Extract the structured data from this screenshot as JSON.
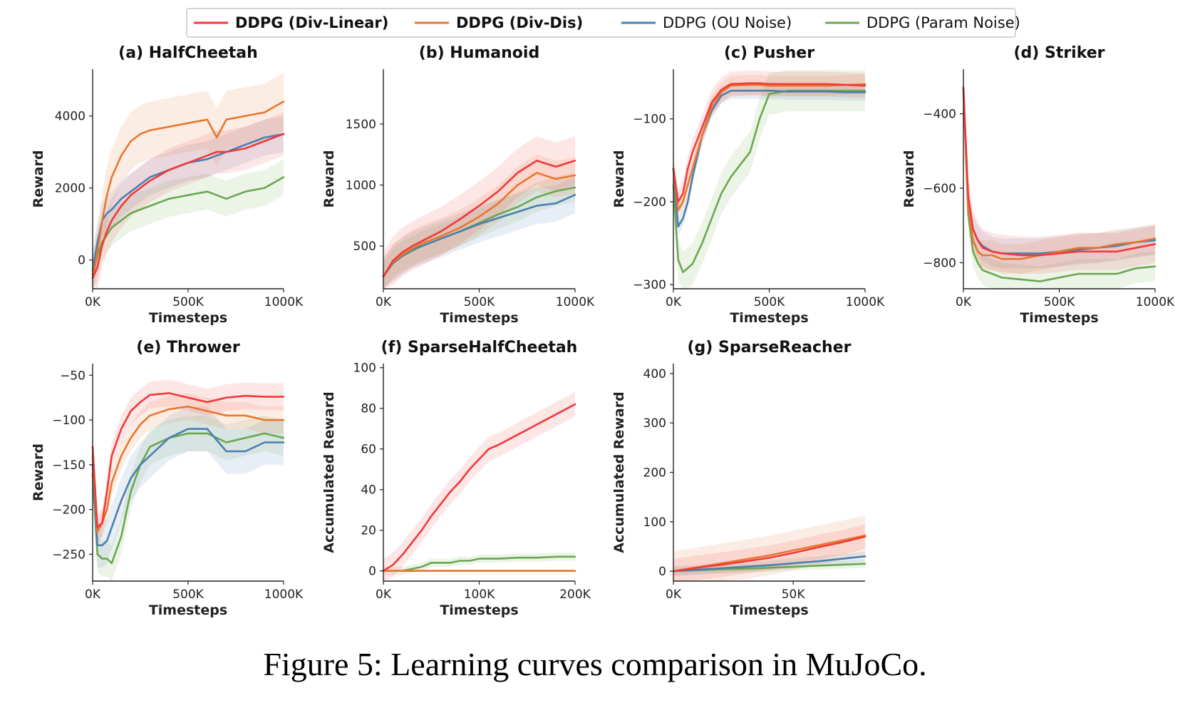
{
  "caption": "Figure 5: Learning curves comparison in MuJoCo.",
  "legend": {
    "placement": "top-center",
    "entries": [
      {
        "label": "DDPG (Div-Linear)",
        "color": "#f03a3a",
        "bold": true
      },
      {
        "label": "DDPG (Div-Dis)",
        "color": "#e8772e",
        "bold": true
      },
      {
        "label": "DDPG (OU Noise)",
        "color": "#4a7fb0",
        "bold": false
      },
      {
        "label": "DDPG (Param Noise)",
        "color": "#6aa84f",
        "bold": false
      }
    ]
  },
  "chart_data": [
    {
      "type": "line",
      "title": "(a) HalfCheetah",
      "xlabel": "Timesteps",
      "ylabel": "Reward",
      "xlim": [
        0,
        1000
      ],
      "ylim": [
        -800,
        5300
      ],
      "xticks": [
        0,
        500,
        1000
      ],
      "xtick_labels": [
        "0K",
        "500K",
        "1000K"
      ],
      "yticks": [
        0,
        2000,
        4000
      ],
      "ytick_labels": [
        "0",
        "2000",
        "4000"
      ],
      "x": [
        0,
        25,
        50,
        75,
        100,
        150,
        200,
        250,
        300,
        400,
        500,
        600,
        650,
        700,
        800,
        900,
        1000
      ],
      "series": [
        {
          "name": "DDPG (Div-Linear)",
          "values": [
            -500,
            -200,
            400,
            800,
            1100,
            1500,
            1800,
            2000,
            2200,
            2500,
            2700,
            2900,
            3000,
            3000,
            3100,
            3300,
            3500
          ],
          "band": 600
        },
        {
          "name": "DDPG (Div-Dis)",
          "values": [
            -500,
            200,
            1100,
            1800,
            2300,
            2900,
            3300,
            3500,
            3600,
            3700,
            3800,
            3900,
            3400,
            3900,
            4000,
            4100,
            4400
          ],
          "band": 800
        },
        {
          "name": "DDPG (OU Noise)",
          "values": [
            -300,
            500,
            1100,
            1300,
            1400,
            1700,
            1900,
            2100,
            2300,
            2500,
            2700,
            2800,
            2900,
            3000,
            3200,
            3400,
            3500
          ],
          "band": 500
        },
        {
          "name": "DDPG (Param Noise)",
          "values": [
            -400,
            100,
            500,
            700,
            900,
            1100,
            1300,
            1400,
            1500,
            1700,
            1800,
            1900,
            1800,
            1700,
            1900,
            2000,
            2300
          ],
          "band": 500
        }
      ]
    },
    {
      "type": "line",
      "title": "(b) Humanoid",
      "xlabel": "Timesteps",
      "ylabel": "Reward",
      "xlim": [
        0,
        1000
      ],
      "ylim": [
        150,
        1950
      ],
      "xticks": [
        0,
        500,
        1000
      ],
      "xtick_labels": [
        "0K",
        "500K",
        "1000K"
      ],
      "yticks": [
        500,
        1000,
        1500
      ],
      "ytick_labels": [
        "500",
        "1000",
        "1500"
      ],
      "x": [
        0,
        50,
        100,
        150,
        200,
        300,
        400,
        500,
        600,
        700,
        800,
        900,
        1000
      ],
      "series": [
        {
          "name": "DDPG (Div-Linear)",
          "values": [
            250,
            380,
            450,
            500,
            540,
            620,
            720,
            830,
            950,
            1100,
            1200,
            1150,
            1200
          ],
          "band": 200
        },
        {
          "name": "DDPG (Div-Dis)",
          "values": [
            250,
            370,
            430,
            480,
            520,
            580,
            650,
            740,
            850,
            1000,
            1100,
            1050,
            1080
          ],
          "band": 150
        },
        {
          "name": "DDPG (OU Noise)",
          "values": [
            250,
            360,
            420,
            470,
            500,
            560,
            620,
            680,
            730,
            780,
            830,
            850,
            920
          ],
          "band": 150
        },
        {
          "name": "DDPG (Param Noise)",
          "values": [
            250,
            360,
            420,
            460,
            500,
            560,
            620,
            690,
            760,
            820,
            900,
            950,
            980
          ],
          "band": 120
        }
      ]
    },
    {
      "type": "line",
      "title": "(c) Pusher",
      "xlabel": "Timesteps",
      "ylabel": "Reward",
      "xlim": [
        0,
        1000
      ],
      "ylim": [
        -305,
        -40
      ],
      "xticks": [
        0,
        500,
        1000
      ],
      "xtick_labels": [
        "0K",
        "500K",
        "1000K"
      ],
      "yticks": [
        -300,
        -200,
        -100
      ],
      "ytick_labels": [
        "−300",
        "−200",
        "−100"
      ],
      "x": [
        0,
        25,
        50,
        75,
        100,
        150,
        200,
        250,
        300,
        400,
        450,
        500,
        600,
        700,
        800,
        900,
        1000
      ],
      "series": [
        {
          "name": "DDPG (Div-Linear)",
          "values": [
            -160,
            -200,
            -190,
            -160,
            -140,
            -110,
            -80,
            -65,
            -58,
            -57,
            -57,
            -58,
            -58,
            -58,
            -58,
            -59,
            -60
          ],
          "band": 15
        },
        {
          "name": "DDPG (Div-Dis)",
          "values": [
            -160,
            -210,
            -200,
            -180,
            -160,
            -120,
            -85,
            -68,
            -60,
            -59,
            -59,
            -60,
            -60,
            -60,
            -60,
            -59,
            -58
          ],
          "band": 12
        },
        {
          "name": "DDPG (OU Noise)",
          "values": [
            -160,
            -230,
            -220,
            -200,
            -170,
            -120,
            -90,
            -72,
            -66,
            -66,
            -66,
            -66,
            -67,
            -67,
            -67,
            -68,
            -68
          ],
          "band": 10
        },
        {
          "name": "DDPG (Param Noise)",
          "values": [
            -180,
            -270,
            -285,
            -280,
            -275,
            -250,
            -220,
            -190,
            -170,
            -140,
            -100,
            -70,
            -66,
            -66,
            -66,
            -66,
            -66
          ],
          "band": 25
        }
      ]
    },
    {
      "type": "line",
      "title": "(d) Striker",
      "xlabel": "Timesteps",
      "ylabel": "Reward",
      "xlim": [
        0,
        1000
      ],
      "ylim": [
        -870,
        -280
      ],
      "xticks": [
        0,
        500,
        1000
      ],
      "xtick_labels": [
        "0K",
        "500K",
        "1000K"
      ],
      "yticks": [
        -800,
        -600,
        -400
      ],
      "ytick_labels": [
        "−800",
        "−600",
        "−400"
      ],
      "x": [
        0,
        10,
        25,
        50,
        75,
        100,
        150,
        200,
        300,
        400,
        500,
        600,
        700,
        800,
        900,
        1000
      ],
      "series": [
        {
          "name": "DDPG (Div-Linear)",
          "values": [
            -330,
            -450,
            -620,
            -710,
            -740,
            -760,
            -770,
            -775,
            -780,
            -780,
            -775,
            -770,
            -770,
            -770,
            -760,
            -750
          ],
          "band": 50
        },
        {
          "name": "DDPG (Div-Dis)",
          "values": [
            -330,
            -460,
            -650,
            -740,
            -770,
            -780,
            -780,
            -790,
            -790,
            -780,
            -770,
            -760,
            -760,
            -750,
            -745,
            -735
          ],
          "band": 40
        },
        {
          "name": "DDPG (OU Noise)",
          "values": [
            -330,
            -450,
            -630,
            -710,
            -740,
            -755,
            -770,
            -775,
            -775,
            -775,
            -770,
            -765,
            -760,
            -755,
            -745,
            -740
          ],
          "band": 40
        },
        {
          "name": "DDPG (Param Noise)",
          "values": [
            -330,
            -470,
            -670,
            -770,
            -800,
            -820,
            -830,
            -840,
            -845,
            -850,
            -840,
            -830,
            -830,
            -830,
            -815,
            -810
          ],
          "band": 40
        }
      ]
    },
    {
      "type": "line",
      "title": "(e) Thrower",
      "xlabel": "Timesteps",
      "ylabel": "Reward",
      "xlim": [
        0,
        1000
      ],
      "ylim": [
        -280,
        -37
      ],
      "xticks": [
        0,
        500,
        1000
      ],
      "xtick_labels": [
        "0K",
        "500K",
        "1000K"
      ],
      "yticks": [
        -250,
        -200,
        -150,
        -100,
        -50
      ],
      "ytick_labels": [
        "−250",
        "−200",
        "−150",
        "−100",
        "−50"
      ],
      "x": [
        0,
        25,
        50,
        75,
        100,
        150,
        200,
        250,
        300,
        400,
        500,
        600,
        700,
        800,
        900,
        1000
      ],
      "series": [
        {
          "name": "DDPG (Div-Linear)",
          "values": [
            -130,
            -220,
            -215,
            -180,
            -140,
            -110,
            -90,
            -80,
            -72,
            -70,
            -75,
            -80,
            -75,
            -73,
            -74,
            -74
          ],
          "band": 15
        },
        {
          "name": "DDPG (Div-Dis)",
          "values": [
            -140,
            -225,
            -215,
            -200,
            -170,
            -140,
            -120,
            -105,
            -95,
            -88,
            -85,
            -90,
            -95,
            -95,
            -100,
            -100
          ],
          "band": 15
        },
        {
          "name": "DDPG (OU Noise)",
          "values": [
            -150,
            -240,
            -240,
            -235,
            -220,
            -190,
            -165,
            -150,
            -140,
            -120,
            -110,
            -110,
            -135,
            -135,
            -125,
            -125
          ],
          "band": 25
        },
        {
          "name": "DDPG (Param Noise)",
          "values": [
            -160,
            -250,
            -255,
            -255,
            -260,
            -230,
            -180,
            -150,
            -130,
            -120,
            -115,
            -115,
            -125,
            -120,
            -115,
            -120
          ],
          "band": 20
        }
      ]
    },
    {
      "type": "line",
      "title": "(f) SparseHalfCheetah",
      "xlabel": "Timesteps",
      "ylabel": "Accumulated Reward",
      "xlim": [
        0,
        200
      ],
      "ylim": [
        -5,
        102
      ],
      "xticks": [
        0,
        100,
        200
      ],
      "xtick_labels": [
        "0K",
        "100K",
        "200K"
      ],
      "yticks": [
        0,
        20,
        40,
        60,
        80,
        100
      ],
      "ytick_labels": [
        "0",
        "20",
        "40",
        "60",
        "80",
        "100"
      ],
      "x": [
        0,
        10,
        20,
        30,
        40,
        50,
        60,
        70,
        80,
        90,
        100,
        110,
        120,
        140,
        160,
        180,
        200
      ],
      "series": [
        {
          "name": "DDPG (Div-Linear)",
          "values": [
            0,
            3,
            8,
            14,
            20,
            27,
            33,
            39,
            44,
            50,
            55,
            60,
            62,
            67,
            72,
            77,
            82
          ],
          "band": 6
        },
        {
          "name": "DDPG (Div-Dis)",
          "values": [
            0,
            0,
            0,
            0,
            0,
            0,
            0,
            0,
            0,
            0,
            0,
            0,
            0,
            0,
            0,
            0,
            0
          ],
          "band": 0
        },
        {
          "name": "DDPG (OU Noise)",
          "values": [
            0,
            0,
            0,
            0,
            0,
            0,
            0,
            0,
            0,
            0,
            0,
            0,
            0,
            0,
            0,
            0,
            0
          ],
          "band": 0
        },
        {
          "name": "DDPG (Param Noise)",
          "values": [
            0,
            0,
            0,
            1,
            2,
            4,
            4,
            4,
            5,
            5,
            6,
            6,
            6,
            6.5,
            6.5,
            7,
            7
          ],
          "band": 2
        }
      ]
    },
    {
      "type": "line",
      "title": "(g) SparseReacher",
      "xlabel": "Timesteps",
      "ylabel": "Accumulated Reward",
      "xlim": [
        0,
        80
      ],
      "ylim": [
        -20,
        420
      ],
      "xticks": [
        0,
        50
      ],
      "xtick_labels": [
        "0K",
        "50K"
      ],
      "yticks": [
        0,
        100,
        200,
        300,
        400
      ],
      "ytick_labels": [
        "0",
        "100",
        "200",
        "300",
        "400"
      ],
      "x": [
        0,
        10,
        20,
        30,
        40,
        50,
        60,
        70,
        80
      ],
      "series": [
        {
          "name": "DDPG (Div-Linear)",
          "values": [
            0,
            7,
            13,
            20,
            27,
            37,
            48,
            58,
            70
          ],
          "band": 25
        },
        {
          "name": "DDPG (Div-Dis)",
          "values": [
            0,
            8,
            16,
            24,
            32,
            42,
            52,
            62,
            72
          ],
          "band": 40
        },
        {
          "name": "DDPG (OU Noise)",
          "values": [
            0,
            3,
            6,
            9,
            12,
            16,
            20,
            25,
            30
          ],
          "band": 10
        },
        {
          "name": "DDPG (Param Noise)",
          "values": [
            0,
            2,
            4,
            5,
            7,
            9,
            11,
            13,
            15
          ],
          "band": 8
        }
      ]
    }
  ]
}
